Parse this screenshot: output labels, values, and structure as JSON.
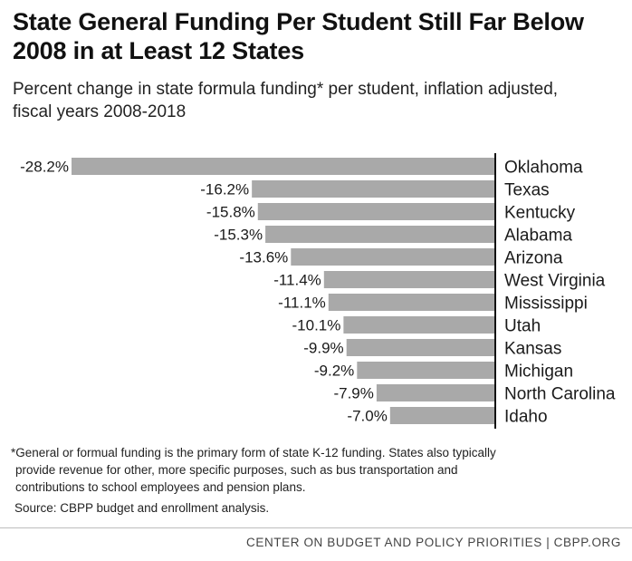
{
  "chart_data": {
    "type": "bar",
    "orientation": "horizontal",
    "title": "State General Funding Per Student Still Far Below 2008 in at Least 12 States",
    "subtitle_line1": "Percent change in state formula funding* per student, inflation adjusted,",
    "subtitle_line2": "fiscal years 2008-2018",
    "categories": [
      "Oklahoma",
      "Texas",
      "Kentucky",
      "Alabama",
      "Arizona",
      "West Virginia",
      "Mississippi",
      "Utah",
      "Kansas",
      "Michigan",
      "North Carolina",
      "Idaho"
    ],
    "values": [
      -28.2,
      -16.2,
      -15.8,
      -15.3,
      -13.6,
      -11.4,
      -11.1,
      -10.1,
      -9.9,
      -9.2,
      -7.9,
      -7.0
    ],
    "value_labels": [
      "-28.2%",
      "-16.2%",
      "-15.8%",
      "-15.3%",
      "-13.6%",
      "-11.4%",
      "-11.1%",
      "-10.1%",
      "-9.9%",
      "-9.2%",
      "-7.9%",
      "-7.0%"
    ],
    "xlim": [
      -28.2,
      0
    ],
    "bar_color": "#a9a9a9",
    "axis_color": "#111111"
  },
  "footnote_line1": "*General or formual funding is the primary form of state K-12 funding. States also typically",
  "footnote_line2": "provide revenue for other, more specific purposes, such as bus transportation and",
  "footnote_line3": "contributions to school employees and pension plans.",
  "source": "Source: CBPP budget and enrollment analysis.",
  "brand": "CENTER ON BUDGET AND POLICY PRIORITIES | CBPP.ORG"
}
